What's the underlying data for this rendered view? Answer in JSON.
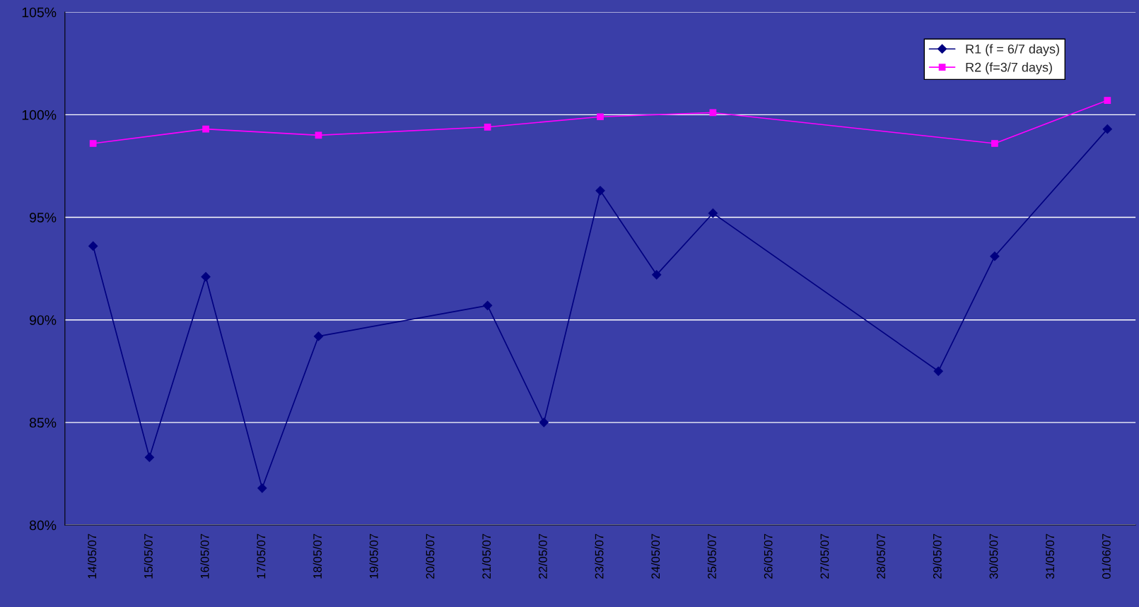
{
  "chart_data": {
    "type": "line",
    "categories": [
      "14/05/07",
      "15/05/07",
      "16/05/07",
      "17/05/07",
      "18/05/07",
      "19/05/07",
      "20/05/07",
      "21/05/07",
      "22/05/07",
      "23/05/07",
      "24/05/07",
      "25/05/07",
      "26/05/07",
      "27/05/07",
      "28/05/07",
      "29/05/07",
      "30/05/07",
      "31/05/07",
      "01/06/07"
    ],
    "series": [
      {
        "name": "R1 (f = 6/7 days)",
        "color": "#000080",
        "marker": "diamond",
        "values": [
          93.6,
          83.3,
          92.1,
          81.8,
          89.2,
          null,
          null,
          90.7,
          85.0,
          96.3,
          92.2,
          95.2,
          null,
          null,
          null,
          87.5,
          93.1,
          null,
          99.3
        ]
      },
      {
        "name": "R2 (f=3/7 days)",
        "color": "#ff00ff",
        "marker": "square",
        "values": [
          98.6,
          null,
          99.3,
          null,
          99.0,
          null,
          null,
          99.4,
          null,
          99.9,
          null,
          100.1,
          null,
          null,
          null,
          null,
          98.6,
          null,
          100.7
        ]
      }
    ],
    "ylim": [
      80,
      105
    ],
    "yticks": [
      {
        "value": 80,
        "label": "80%"
      },
      {
        "value": 85,
        "label": "85%"
      },
      {
        "value": 90,
        "label": "90%"
      },
      {
        "value": 95,
        "label": "95%"
      },
      {
        "value": 100,
        "label": "100%"
      },
      {
        "value": 105,
        "label": "105%"
      }
    ],
    "grid": "y",
    "legend": "top right",
    "line_style": "solid"
  }
}
